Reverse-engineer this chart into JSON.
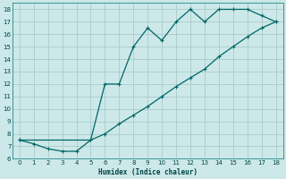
{
  "xlabel": "Humidex (Indice chaleur)",
  "bg_color": "#cce8e8",
  "grid_color": "#aacccc",
  "line_color": "#006666",
  "xlim": [
    -0.5,
    18.5
  ],
  "ylim": [
    6,
    18.5
  ],
  "xticks": [
    0,
    1,
    2,
    3,
    4,
    5,
    6,
    7,
    8,
    9,
    10,
    11,
    12,
    13,
    14,
    15,
    16,
    17,
    18
  ],
  "yticks": [
    6,
    7,
    8,
    9,
    10,
    11,
    12,
    13,
    14,
    15,
    16,
    17,
    18
  ],
  "upper_x": [
    0,
    1,
    2,
    3,
    4,
    5,
    6,
    7,
    8,
    9,
    10,
    11,
    12,
    13,
    14,
    15,
    16,
    17,
    18
  ],
  "upper_y": [
    7.5,
    7.2,
    6.8,
    6.6,
    6.6,
    7.5,
    12.0,
    12.0,
    15.0,
    16.5,
    15.5,
    17.0,
    18.0,
    17.0,
    18.0,
    18.0,
    18.0,
    17.5,
    17.0
  ],
  "lower_x": [
    0,
    5,
    6,
    7,
    8,
    9,
    10,
    11,
    12,
    13,
    14,
    15,
    16,
    17,
    18
  ],
  "lower_y": [
    7.5,
    7.5,
    8.0,
    8.8,
    9.5,
    10.2,
    11.0,
    11.8,
    12.5,
    13.2,
    14.2,
    15.0,
    15.8,
    16.5,
    17.0
  ]
}
